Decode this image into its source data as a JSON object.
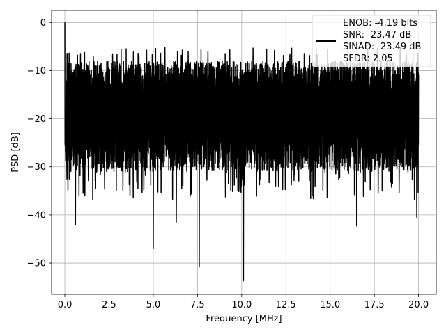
{
  "chart_data": {
    "type": "line",
    "xlabel": "Frequency [MHz]",
    "ylabel": "PSD [dB]",
    "xlim": [
      -0.75,
      21.0
    ],
    "ylim": [
      -56.5,
      2.5
    ],
    "xticks": [
      0.0,
      2.5,
      5.0,
      7.5,
      10.0,
      12.5,
      15.0,
      17.5,
      20.0
    ],
    "xtick_labels": [
      "0.0",
      "2.5",
      "5.0",
      "7.5",
      "10.0",
      "12.5",
      "15.0",
      "17.5",
      "20.0"
    ],
    "yticks": [
      0,
      -10,
      -20,
      -30,
      -40,
      -50
    ],
    "ytick_labels": [
      "0",
      "−10",
      "−20",
      "−30",
      "−40",
      "−50"
    ],
    "grid": true,
    "legend_position": "upper-right",
    "legend": [
      "ENOB: -4.19 bits",
      "SNR: -23.47 dB",
      "SINAD: -23.49 dB",
      "SFDR: 2.05"
    ],
    "series": [
      {
        "color": "#000000",
        "description": "noise-like PSD spanning 0-20 MHz, fluctuating mostly between -35 and -7 dB",
        "peak": {
          "x": 0.0,
          "y": 0.0
        },
        "notable_dips": [
          {
            "x": 0.6,
            "y": -42.0
          },
          {
            "x": 5.0,
            "y": -47.0
          },
          {
            "x": 6.3,
            "y": -41.5
          },
          {
            "x": 7.6,
            "y": -50.8
          },
          {
            "x": 10.1,
            "y": -53.7
          },
          {
            "x": 16.5,
            "y": -42.3
          },
          {
            "x": 19.9,
            "y": -40.5
          }
        ],
        "typical_upper": -8.0,
        "typical_lower": -31.0
      }
    ]
  }
}
